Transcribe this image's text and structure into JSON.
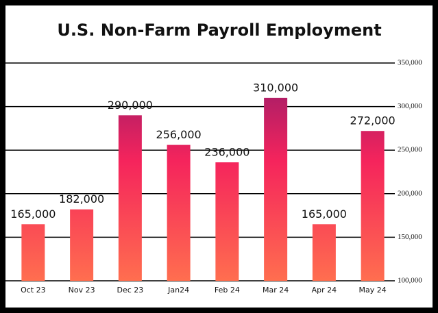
{
  "chart_data": {
    "type": "bar",
    "title": "U.S. Non-Farm Payroll Employment",
    "categories": [
      "Oct 23",
      "Nov 23",
      "Dec 23",
      "Jan24",
      "Feb 24",
      "Mar 24",
      "Apr 24",
      "May 24"
    ],
    "values": [
      165000,
      182000,
      290000,
      256000,
      236000,
      310000,
      165000,
      272000
    ],
    "value_labels": [
      "165,000",
      "182,000",
      "290,000",
      "256,000",
      "236,000",
      "310,000",
      "165,000",
      "272,000"
    ],
    "colors": [
      "#ff6e4f",
      "#f5245c",
      "#8f1b6b"
    ],
    "ylim": [
      100000,
      350000
    ],
    "yticks": [
      {
        "value": 100000,
        "label": "100,000"
      },
      {
        "value": 150000,
        "label": "150,000"
      },
      {
        "value": 200000,
        "label": "200,000"
      },
      {
        "value": 250000,
        "label": "250,000"
      },
      {
        "value": 300000,
        "label": "300,000"
      },
      {
        "value": 350000,
        "label": "350,000"
      }
    ],
    "grid": true,
    "y_axis_side": "right"
  }
}
